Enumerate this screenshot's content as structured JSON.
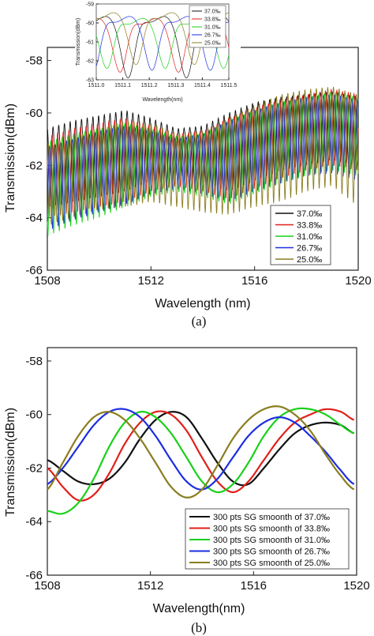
{
  "colors": {
    "s370": "#111111",
    "s338": "#e0201b",
    "s310": "#19d119",
    "s267": "#1d2ee0",
    "s250": "#8a7d1f"
  },
  "chart_data": [
    {
      "id": "a",
      "type": "line",
      "caption": "(a)",
      "xlabel": "Wavelength (nm)",
      "ylabel": "Transmission(dBm)",
      "xlim": [
        1508,
        1520
      ],
      "ylim": [
        -66,
        -57.5
      ],
      "xticks": [
        1508,
        1512,
        1516,
        1520
      ],
      "yticks": [
        -66,
        -64,
        -62,
        -60,
        -58
      ],
      "xtick_labels": [
        "1508",
        "1512",
        "1516",
        "1520"
      ],
      "ytick_labels": [
        "-66",
        "-64",
        "-62",
        "-60",
        "-58"
      ],
      "legend_position": "bottom-right",
      "fringe_spacing_nm": 0.22,
      "x": [
        1508,
        1509,
        1510,
        1511,
        1512,
        1513,
        1514,
        1515,
        1516,
        1517,
        1518,
        1519,
        1520
      ],
      "series": [
        {
          "name": "37.0‰",
          "color_key": "s370",
          "phase": 0.0,
          "upper": [
            -60.6,
            -60.3,
            -60.1,
            -59.9,
            -60.2,
            -60.6,
            -60.5,
            -60.0,
            -59.6,
            -59.4,
            -59.3,
            -59.2,
            -59.4
          ],
          "lower": [
            -63.6,
            -63.4,
            -63.2,
            -63.0,
            -62.6,
            -62.4,
            -62.6,
            -63.0,
            -62.6,
            -62.2,
            -62.0,
            -61.8,
            -62.0
          ]
        },
        {
          "name": "33.8‰",
          "color_key": "s338",
          "phase": 0.2,
          "upper": [
            -60.9,
            -60.6,
            -60.4,
            -60.2,
            -60.5,
            -60.8,
            -60.7,
            -60.2,
            -59.8,
            -59.5,
            -59.3,
            -59.1,
            -59.3
          ],
          "lower": [
            -64.0,
            -63.8,
            -63.6,
            -63.4,
            -63.0,
            -62.8,
            -63.0,
            -63.3,
            -62.9,
            -62.5,
            -62.2,
            -62.0,
            -62.2
          ]
        },
        {
          "name": "31.0‰",
          "color_key": "s310",
          "phase": 0.4,
          "upper": [
            -61.1,
            -60.8,
            -60.6,
            -60.4,
            -60.6,
            -60.9,
            -60.8,
            -60.3,
            -59.9,
            -59.6,
            -59.4,
            -59.2,
            -59.4
          ],
          "lower": [
            -64.7,
            -64.3,
            -64.0,
            -63.6,
            -63.2,
            -63.0,
            -63.2,
            -63.5,
            -63.1,
            -62.7,
            -62.4,
            -62.2,
            -62.4
          ]
        },
        {
          "name": "26.7‰",
          "color_key": "s267",
          "phase": 0.6,
          "upper": [
            -61.3,
            -61.0,
            -60.7,
            -60.5,
            -60.7,
            -61.0,
            -60.8,
            -60.3,
            -59.9,
            -59.6,
            -59.4,
            -59.3,
            -59.5
          ],
          "lower": [
            -64.5,
            -64.1,
            -63.8,
            -63.5,
            -63.1,
            -62.9,
            -63.1,
            -63.4,
            -63.0,
            -62.7,
            -62.4,
            -62.3,
            -62.6
          ]
        },
        {
          "name": "25.0‰",
          "color_key": "s250",
          "phase": 0.8,
          "upper": [
            -61.2,
            -60.9,
            -60.6,
            -60.3,
            -60.4,
            -60.8,
            -60.7,
            -60.2,
            -59.7,
            -59.3,
            -59.1,
            -59.0,
            -59.3
          ],
          "lower": [
            -64.3,
            -64.0,
            -63.7,
            -63.6,
            -63.4,
            -63.6,
            -63.8,
            -63.9,
            -63.6,
            -63.4,
            -63.0,
            -62.8,
            -63.6
          ]
        }
      ]
    },
    {
      "id": "a-inset",
      "type": "line",
      "xlabel": "Wavelength(nm)",
      "ylabel": "Transmission(dBm)",
      "xlim": [
        1511.0,
        1511.5
      ],
      "ylim": [
        -63,
        -59
      ],
      "xticks": [
        1511.0,
        1511.1,
        1511.2,
        1511.3,
        1511.4,
        1511.5
      ],
      "yticks": [
        -63,
        -62,
        -61,
        -60,
        -59
      ],
      "xtick_labels": [
        "1511.0",
        "1511.1",
        "1511.2",
        "1511.3",
        "1511.4",
        "1511.5"
      ],
      "ytick_labels": [
        "-63",
        "-62",
        "-61",
        "-60",
        "-59"
      ],
      "legend_position": "top-right",
      "period_nm": 0.22,
      "series": [
        {
          "name": "37.0‰",
          "color_key": "s370",
          "min_at": 1511.34,
          "depth": -62.9,
          "top": -59.8
        },
        {
          "name": "33.8‰",
          "color_key": "s338",
          "min_at": 1511.31,
          "depth": -62.6,
          "top": -59.9
        },
        {
          "name": "31.0‰",
          "color_key": "s310",
          "min_at": 1511.26,
          "depth": -62.4,
          "top": -59.9
        },
        {
          "name": "26.7‰",
          "color_key": "s267",
          "min_at": 1511.21,
          "depth": -62.5,
          "top": -59.8
        },
        {
          "name": "25.0‰",
          "color_key": "s250",
          "min_at": 1511.15,
          "depth": -62.2,
          "top": -59.6
        }
      ]
    },
    {
      "id": "b",
      "type": "line",
      "caption": "(b)",
      "xlabel": "Wavelength(nm)",
      "ylabel": "Transmission(dBm)",
      "xlim": [
        1508,
        1520
      ],
      "ylim": [
        -66,
        -57.5
      ],
      "xticks": [
        1508,
        1512,
        1516,
        1520
      ],
      "yticks": [
        -66,
        -64,
        -62,
        -60,
        -58
      ],
      "xtick_labels": [
        "1508",
        "1512",
        "1516",
        "1520"
      ],
      "ytick_labels": [
        "-66",
        "-64",
        "-62",
        "-60",
        "-58"
      ],
      "legend_position": "bottom-right",
      "series": [
        {
          "name": "300 pts SG smoonth of 37.0‰",
          "color_key": "s370",
          "x": [
            1508,
            1508.6,
            1509.2,
            1509.8,
            1510.4,
            1511.0,
            1511.6,
            1512.2,
            1512.8,
            1513.4,
            1514.0,
            1514.6,
            1515.2,
            1515.8,
            1516.4,
            1517.0,
            1517.6,
            1518.2,
            1518.8,
            1519.4,
            1519.9
          ],
          "y": [
            -61.7,
            -62.1,
            -62.5,
            -62.6,
            -62.4,
            -61.8,
            -60.9,
            -60.2,
            -59.9,
            -60.1,
            -60.9,
            -61.8,
            -62.5,
            -62.6,
            -62.0,
            -61.3,
            -60.7,
            -60.4,
            -60.3,
            -60.4,
            -60.7
          ]
        },
        {
          "name": "300 pts SG smoonth of 33.8‰",
          "color_key": "s338",
          "x": [
            1508,
            1508.6,
            1509.2,
            1509.8,
            1510.4,
            1511.0,
            1511.6,
            1512.2,
            1512.8,
            1513.4,
            1514.0,
            1514.6,
            1515.2,
            1515.8,
            1516.4,
            1517.0,
            1517.6,
            1518.2,
            1518.8,
            1519.4,
            1519.9
          ],
          "y": [
            -62.0,
            -62.7,
            -63.2,
            -63.0,
            -62.2,
            -61.1,
            -60.3,
            -59.9,
            -60.0,
            -60.6,
            -61.6,
            -62.5,
            -62.9,
            -62.5,
            -61.7,
            -60.9,
            -60.3,
            -60.0,
            -59.8,
            -59.9,
            -60.2
          ]
        },
        {
          "name": "300 pts SG smoonth of 31.0‰",
          "color_key": "s310",
          "x": [
            1508,
            1508.6,
            1509.2,
            1509.8,
            1510.4,
            1511.0,
            1511.6,
            1512.2,
            1512.8,
            1513.4,
            1514.0,
            1514.6,
            1515.2,
            1515.8,
            1516.4,
            1517.0,
            1517.6,
            1518.2,
            1518.8,
            1519.4,
            1519.9
          ],
          "y": [
            -63.6,
            -63.7,
            -63.3,
            -62.4,
            -61.2,
            -60.3,
            -59.9,
            -60.1,
            -60.7,
            -61.6,
            -62.5,
            -62.9,
            -62.6,
            -61.8,
            -60.8,
            -60.1,
            -59.8,
            -59.8,
            -60.0,
            -60.4,
            -60.7
          ]
        },
        {
          "name": "300 pts SG smoonth of 26.7‰",
          "color_key": "s267",
          "x": [
            1508,
            1508.6,
            1509.2,
            1509.8,
            1510.4,
            1511.0,
            1511.6,
            1512.2,
            1512.8,
            1513.4,
            1514.0,
            1514.6,
            1515.2,
            1515.8,
            1516.4,
            1517.0,
            1517.6,
            1518.2,
            1518.8,
            1519.4,
            1519.9
          ],
          "y": [
            -62.6,
            -62.0,
            -61.2,
            -60.4,
            -59.9,
            -59.8,
            -60.1,
            -60.8,
            -61.7,
            -62.5,
            -62.8,
            -62.4,
            -61.6,
            -60.8,
            -60.3,
            -60.1,
            -60.3,
            -60.8,
            -61.4,
            -62.1,
            -62.6
          ]
        },
        {
          "name": "300 pts SG smoonth of 25.0‰",
          "color_key": "s250",
          "x": [
            1508,
            1508.6,
            1509.2,
            1509.8,
            1510.4,
            1511.0,
            1511.6,
            1512.2,
            1512.8,
            1513.4,
            1514.0,
            1514.6,
            1515.2,
            1515.8,
            1516.4,
            1517.0,
            1517.6,
            1518.2,
            1518.8,
            1519.4,
            1519.9
          ],
          "y": [
            -62.8,
            -61.8,
            -60.8,
            -60.1,
            -59.9,
            -60.2,
            -60.9,
            -61.8,
            -62.7,
            -63.1,
            -62.8,
            -61.9,
            -60.9,
            -60.2,
            -59.8,
            -59.7,
            -60.0,
            -60.6,
            -61.5,
            -62.3,
            -62.8
          ]
        }
      ]
    }
  ]
}
